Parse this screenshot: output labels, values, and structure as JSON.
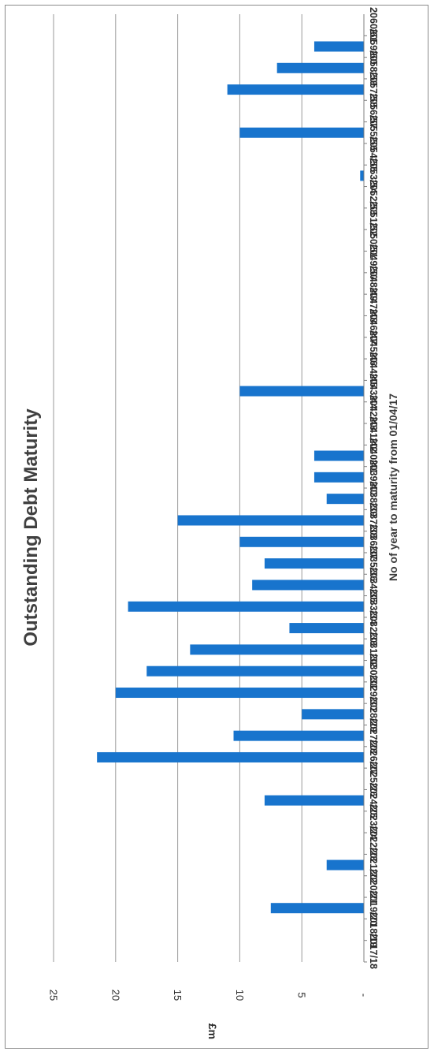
{
  "chart_data": {
    "type": "bar",
    "orientation": "horizontal",
    "title": "Outstanding Debt Maturity",
    "xlabel": "No of year to maturity from 01/04/17",
    "ylabel": "£m",
    "ylim": [
      0,
      25
    ],
    "yticks": [
      "-",
      "5",
      "10",
      "15",
      "20",
      "25"
    ],
    "grid": true,
    "legend": "none",
    "bar_color": "#1874cd",
    "categories": [
      "2017/18",
      "2018/19",
      "2019/20",
      "2020/21",
      "2021/22",
      "2022/23",
      "2023/24",
      "2024/25",
      "2025/26",
      "2026/27",
      "2027/28",
      "2028/29",
      "2029/30",
      "2030/31",
      "2031/32",
      "2032/33",
      "2033/34",
      "2034/35",
      "2035/36",
      "2036/37",
      "2037/38",
      "2038/39",
      "2039/40",
      "2040/41",
      "2041/42",
      "2042/43",
      "2043/44",
      "2044/45",
      "2045/46",
      "2046/47",
      "2047/48",
      "2048/49",
      "2049/50",
      "2050/51",
      "2051/52",
      "2052/53",
      "2053/54",
      "2054/55",
      "2055/56",
      "2056/57",
      "2057/58",
      "2058/59",
      "2059/60",
      "2060/61"
    ],
    "values": [
      0,
      0,
      7.5,
      0,
      3,
      0,
      0,
      8,
      0,
      21.5,
      10.5,
      5,
      20,
      17.5,
      14,
      6,
      19,
      9,
      8,
      10,
      15,
      3,
      4,
      4,
      0,
      0,
      10,
      0,
      0,
      0,
      0,
      0,
      0,
      0,
      0,
      0,
      0.3,
      0,
      10,
      0,
      11,
      7,
      4,
      0
    ]
  }
}
